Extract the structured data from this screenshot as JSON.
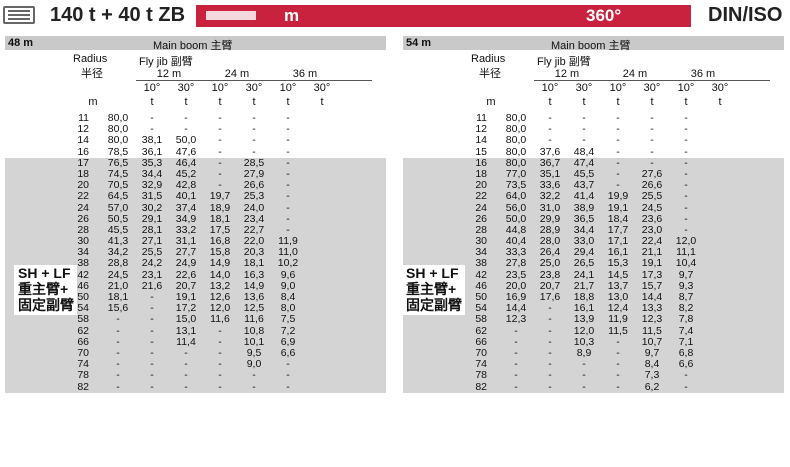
{
  "header": {
    "title": "140 t + 40 t ZB",
    "unit": "m",
    "angle": "360°",
    "standard": "DIN/ISO"
  },
  "columns": {
    "main_boom": "Main boom 主臂",
    "radius_en": "Radius",
    "radius_cn": "半径",
    "fly_jib": "Fly jib 副臂",
    "lengths": [
      "12 m",
      "24 m",
      "36 m"
    ],
    "angles": [
      "10°",
      "30°",
      "10°",
      "30°",
      "10°",
      "30°"
    ],
    "unit_radius": "m",
    "unit_load": "t"
  },
  "config_label": [
    "SH + LF",
    "重主臂+",
    "固定副臂"
  ],
  "panels": [
    {
      "boom_length": "48 m",
      "rows": [
        [
          "11",
          "80,0",
          "-",
          "-",
          "-",
          "-",
          "-"
        ],
        [
          "12",
          "80,0",
          "-",
          "-",
          "-",
          "-",
          "-"
        ],
        [
          "14",
          "80,0",
          "38,1",
          "50,0",
          "-",
          "-",
          "-"
        ],
        [
          "16",
          "78,5",
          "36,1",
          "47,6",
          "-",
          "-",
          "-"
        ],
        [
          "17",
          "76,5",
          "35,3",
          "46,4",
          "-",
          "28,5",
          "-"
        ],
        [
          "18",
          "74,5",
          "34,4",
          "45,2",
          "-",
          "27,9",
          "-"
        ],
        [
          "20",
          "70,5",
          "32,9",
          "42,8",
          "-",
          "26,6",
          "-"
        ],
        [
          "22",
          "64,5",
          "31,5",
          "40,1",
          "19,7",
          "25,3",
          "-"
        ],
        [
          "24",
          "57,0",
          "30,2",
          "37,4",
          "18,9",
          "24,0",
          "-"
        ],
        [
          "26",
          "50,5",
          "29,1",
          "34,9",
          "18,1",
          "23,4",
          "-"
        ],
        [
          "28",
          "45,5",
          "28,1",
          "33,2",
          "17,5",
          "22,7",
          "-"
        ],
        [
          "30",
          "41,3",
          "27,1",
          "31,1",
          "16,8",
          "22,0",
          "11,9"
        ],
        [
          "34",
          "34,2",
          "25,5",
          "27,7",
          "15,8",
          "20,3",
          "11,0"
        ],
        [
          "38",
          "28,8",
          "24,2",
          "24,9",
          "14,9",
          "18,1",
          "10,2"
        ],
        [
          "42",
          "24,5",
          "23,1",
          "22,6",
          "14,0",
          "16,3",
          "9,6"
        ],
        [
          "46",
          "21,0",
          "21,6",
          "20,7",
          "13,2",
          "14,9",
          "9,0"
        ],
        [
          "50",
          "18,1",
          "-",
          "19,1",
          "12,6",
          "13,6",
          "8,4"
        ],
        [
          "54",
          "15,6",
          "-",
          "17,2",
          "12,0",
          "12,5",
          "8,0"
        ],
        [
          "58",
          "-",
          "-",
          "15,0",
          "11,6",
          "11,6",
          "7,5"
        ],
        [
          "62",
          "-",
          "-",
          "13,1",
          "-",
          "10,8",
          "7,2"
        ],
        [
          "66",
          "-",
          "-",
          "11,4",
          "-",
          "10,1",
          "6,9"
        ],
        [
          "70",
          "-",
          "-",
          "-",
          "-",
          "9,5",
          "6,6"
        ],
        [
          "74",
          "-",
          "-",
          "-",
          "-",
          "9,0",
          "-"
        ],
        [
          "78",
          "-",
          "-",
          "-",
          "-",
          "-",
          "-"
        ],
        [
          "82",
          "-",
          "-",
          "-",
          "-",
          "-",
          "-"
        ]
      ]
    },
    {
      "boom_length": "54 m",
      "rows": [
        [
          "11",
          "80,0",
          "-",
          "-",
          "-",
          "-",
          "-"
        ],
        [
          "12",
          "80,0",
          "-",
          "-",
          "-",
          "-",
          "-"
        ],
        [
          "14",
          "80,0",
          "-",
          "-",
          "-",
          "-",
          "-"
        ],
        [
          "15",
          "80,0",
          "37,6",
          "48,4",
          "-",
          "-",
          "-"
        ],
        [
          "16",
          "80,0",
          "36,7",
          "47,4",
          "-",
          "-",
          "-"
        ],
        [
          "18",
          "77,0",
          "35,1",
          "45,5",
          "-",
          "27,6",
          "-"
        ],
        [
          "20",
          "73,5",
          "33,6",
          "43,7",
          "-",
          "26,6",
          "-"
        ],
        [
          "22",
          "64,0",
          "32,2",
          "41,4",
          "19,9",
          "25,5",
          "-"
        ],
        [
          "24",
          "56,0",
          "31,0",
          "38,9",
          "19,1",
          "24,5",
          "-"
        ],
        [
          "26",
          "50,0",
          "29,9",
          "36,5",
          "18,4",
          "23,6",
          "-"
        ],
        [
          "28",
          "44,8",
          "28,9",
          "34,4",
          "17,7",
          "23,0",
          "-"
        ],
        [
          "30",
          "40,4",
          "28,0",
          "33,0",
          "17,1",
          "22,4",
          "12,0"
        ],
        [
          "34",
          "33,3",
          "26,4",
          "29,4",
          "16,1",
          "21,1",
          "11,1"
        ],
        [
          "38",
          "27,8",
          "25,0",
          "26,5",
          "15,3",
          "19,1",
          "10,4"
        ],
        [
          "42",
          "23,5",
          "23,8",
          "24,1",
          "14,5",
          "17,3",
          "9,7"
        ],
        [
          "46",
          "20,0",
          "20,7",
          "21,7",
          "13,7",
          "15,7",
          "9,3"
        ],
        [
          "50",
          "16,9",
          "17,6",
          "18,8",
          "13,0",
          "14,4",
          "8,7"
        ],
        [
          "54",
          "14,4",
          "-",
          "16,1",
          "12,4",
          "13,3",
          "8,2"
        ],
        [
          "58",
          "12,3",
          "-",
          "13,9",
          "11,9",
          "12,3",
          "7,8"
        ],
        [
          "62",
          "-",
          "-",
          "12,0",
          "11,5",
          "11,5",
          "7,4"
        ],
        [
          "66",
          "-",
          "-",
          "10,3",
          "-",
          "10,7",
          "7,1"
        ],
        [
          "70",
          "-",
          "-",
          "8,9",
          "-",
          "9,7",
          "6,8"
        ],
        [
          "74",
          "-",
          "-",
          "-",
          "-",
          "8,4",
          "6,6"
        ],
        [
          "78",
          "-",
          "-",
          "-",
          "-",
          "7,3",
          "-"
        ],
        [
          "82",
          "-",
          "-",
          "-",
          "-",
          "6,2",
          "-"
        ]
      ]
    }
  ]
}
